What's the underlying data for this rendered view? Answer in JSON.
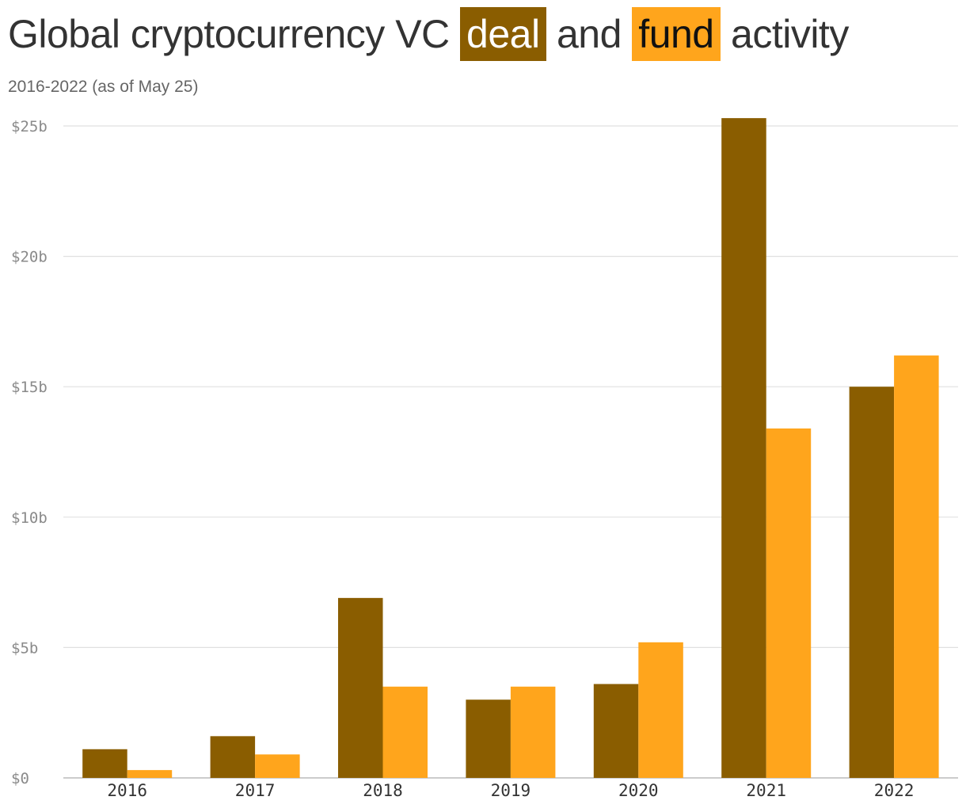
{
  "title": {
    "before": "Global cryptocurrency VC ",
    "deal": "deal",
    "middle": " and ",
    "fund": "fund",
    "after": " activity"
  },
  "subtitle": "2016-2022 (as of May 25)",
  "colors": {
    "deal": "#8a5d00",
    "fund": "#ffa51c",
    "grid": "#e0e0e0",
    "axis": "#bbbbbb"
  },
  "chart_data": {
    "type": "bar",
    "categories": [
      "2016",
      "2017",
      "2018",
      "2019",
      "2020",
      "2021",
      "2022"
    ],
    "series": [
      {
        "name": "deal",
        "values": [
          1.1,
          1.6,
          6.9,
          3.0,
          3.6,
          25.3,
          15.0
        ]
      },
      {
        "name": "fund",
        "values": [
          0.3,
          0.9,
          3.5,
          3.5,
          5.2,
          13.4,
          16.2
        ]
      }
    ],
    "ylim": [
      0,
      25
    ],
    "yticks": [
      0,
      5,
      10,
      15,
      20,
      25
    ],
    "ytick_labels": [
      "$0",
      "$5b",
      "$10b",
      "$15b",
      "$20b",
      "$25b"
    ],
    "grid": true,
    "xlabel": "",
    "ylabel": ""
  }
}
